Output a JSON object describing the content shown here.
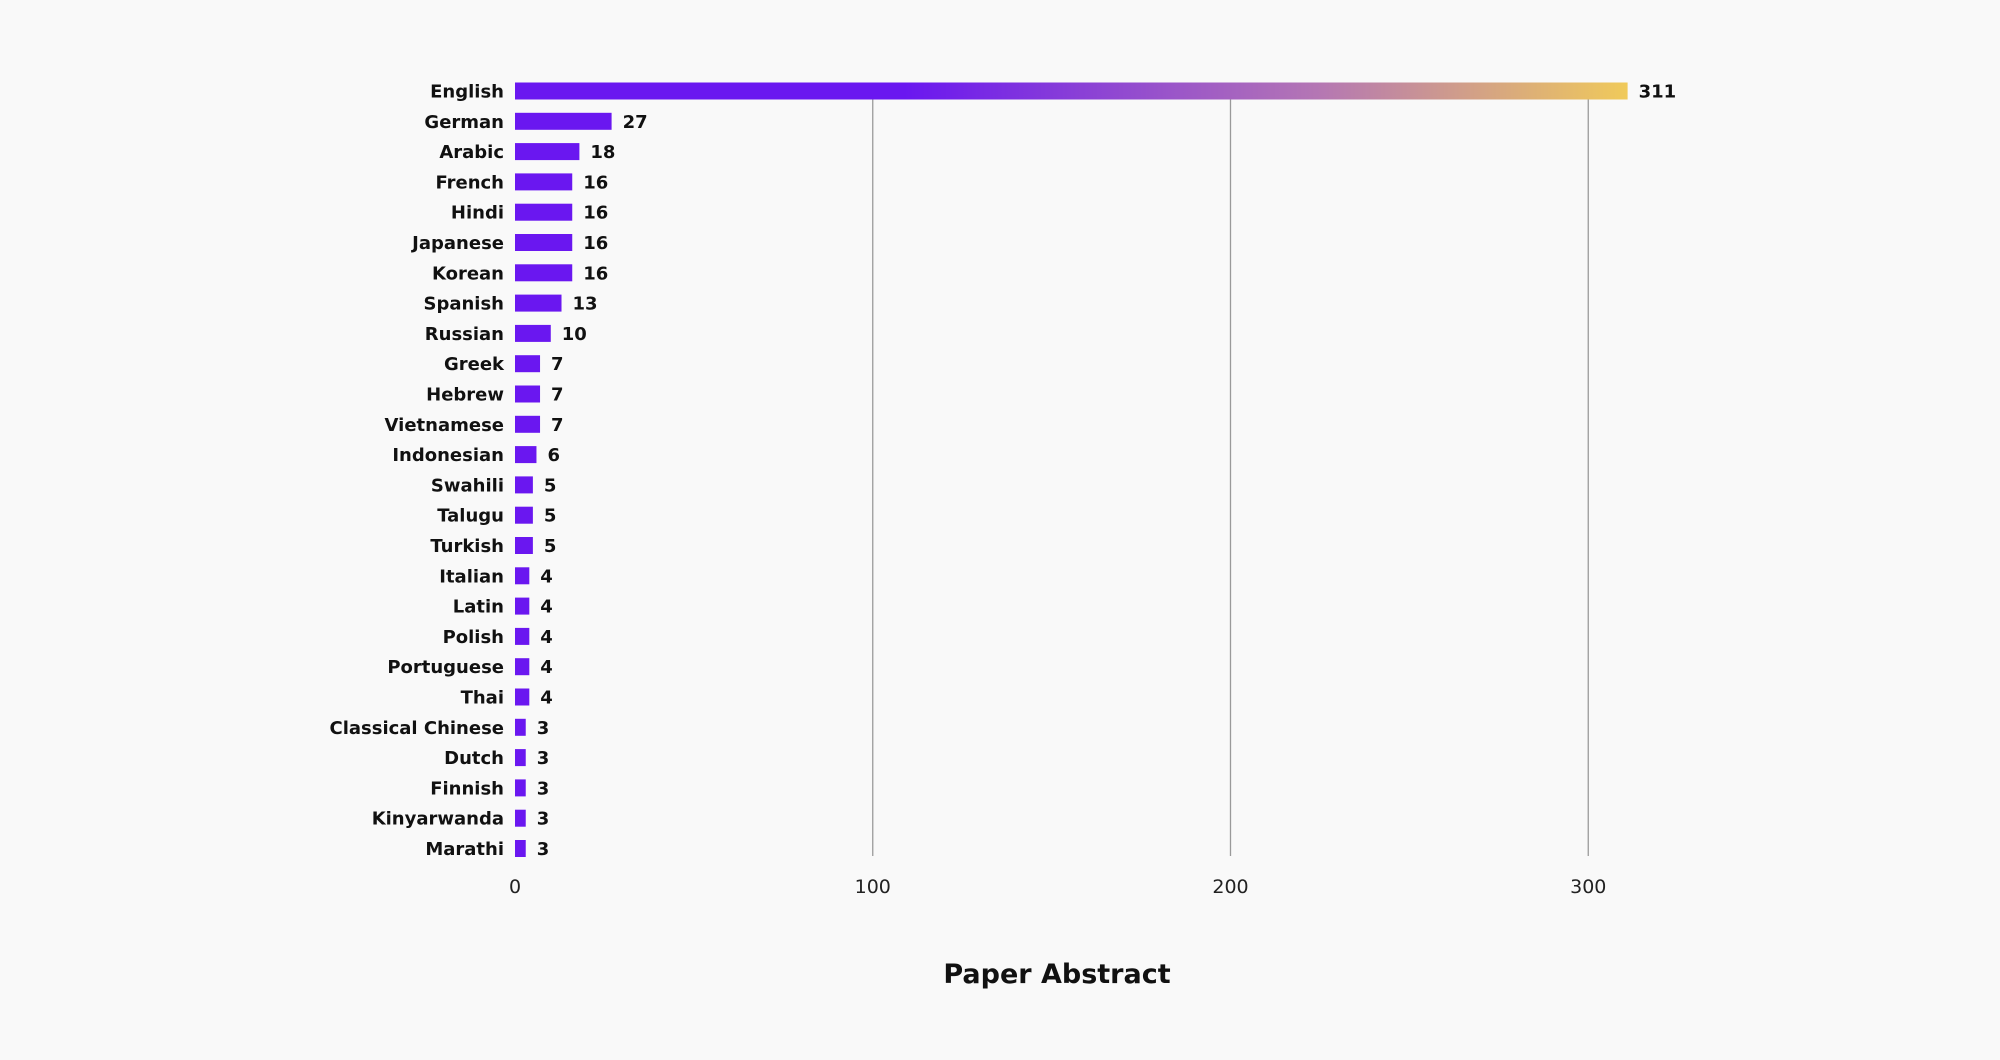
{
  "chart_data": {
    "type": "bar",
    "orientation": "horizontal",
    "categories": [
      "English",
      "German",
      "Arabic",
      "French",
      "Hindi",
      "Japanese",
      "Korean",
      "Spanish",
      "Russian",
      "Greek",
      "Hebrew",
      "Vietnamese",
      "Indonesian",
      "Swahili",
      "Talugu",
      "Turkish",
      "Italian",
      "Latin",
      "Polish",
      "Portuguese",
      "Thai",
      "Classical Chinese",
      "Dutch",
      "Finnish",
      "Kinyarwanda",
      "Marathi"
    ],
    "values": [
      311,
      27,
      18,
      16,
      16,
      16,
      16,
      13,
      10,
      7,
      7,
      7,
      6,
      5,
      5,
      5,
      4,
      4,
      4,
      4,
      4,
      3,
      3,
      3,
      3,
      3
    ],
    "value_labels": [
      "311",
      "27",
      "18",
      "16",
      "16",
      "16",
      "16",
      "13",
      "10",
      "7",
      "7",
      "7",
      "6",
      "5",
      "5",
      "5",
      "4",
      "4",
      "4",
      "4",
      "4",
      "3",
      "3",
      "3",
      "3",
      "3"
    ],
    "xlabel": "Paper Abstract",
    "ylabel": "",
    "xlim": [
      0,
      311
    ],
    "xticks": [
      0,
      100,
      200,
      300
    ],
    "xtick_labels": [
      "0",
      "100",
      "200",
      "300"
    ],
    "grid": "vertical",
    "legend": "none",
    "colors": {
      "bar": "#6a17f0",
      "gradient_start": "#6a17f0",
      "gradient_mid": "#b476b4",
      "gradient_end": "#f0ca5a",
      "grid": "#9a9a9a",
      "background": "#f9f9f9"
    }
  }
}
